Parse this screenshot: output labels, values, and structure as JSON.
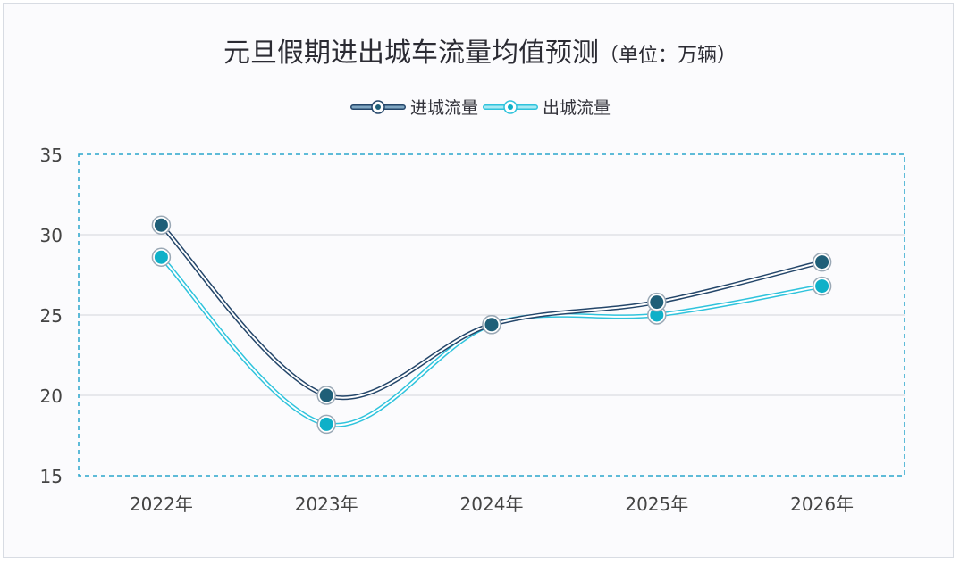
{
  "chart_data": {
    "type": "line",
    "title": "元旦假期进出城车流量均值预测",
    "unit_label": "（单位：万辆）",
    "categories": [
      "2022年",
      "2023年",
      "2024年",
      "2025年",
      "2026年"
    ],
    "ylim": [
      15,
      35
    ],
    "yticks": [
      15,
      20,
      25,
      30,
      35
    ],
    "grid": true,
    "legend_position": "top",
    "smooth": true,
    "series": [
      {
        "name": "进城流量",
        "values": [
          30.6,
          20.0,
          24.4,
          25.8,
          28.3
        ],
        "color": "#1f5f78",
        "line_color": "#24466a"
      },
      {
        "name": "出城流量",
        "values": [
          28.6,
          18.2,
          24.4,
          25.0,
          26.8
        ],
        "color": "#0fb0c8",
        "line_color": "#2fc3dc"
      }
    ],
    "plot_border_color": "#2ba6cc"
  }
}
